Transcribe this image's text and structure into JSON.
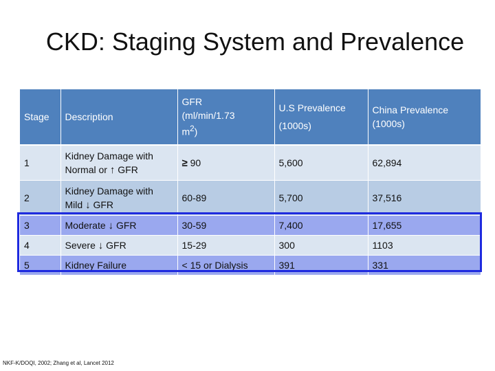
{
  "title": "CKD: Staging System and Prevalence",
  "table": {
    "headers": {
      "stage": "Stage",
      "description": "Description",
      "gfr_line1": "GFR",
      "gfr_line2": "(ml/min/1.73",
      "gfr_line3": "m",
      "gfr_sup": "2",
      "gfr_close": ")",
      "us_line1": "U.S Prevalence",
      "us_line2": "(1000s)",
      "china_line1": "China Prevalence",
      "china_line2": "(1000s)"
    },
    "rows": [
      {
        "stage": "1",
        "desc_line1": "Kidney Damage with",
        "desc_line2": "Normal or",
        "arrow": "↑",
        "desc_tail": "GFR",
        "gfr_symbol": "≥",
        "gfr": "90",
        "us": "5,600",
        "china": "62,894"
      },
      {
        "stage": "2",
        "desc_line1": "Kidney Damage with",
        "desc_line2": "Mild",
        "arrow": "↓",
        "desc_tail": "GFR",
        "gfr": "60-89",
        "us": "5,700",
        "china": "37,516"
      },
      {
        "stage": "3",
        "desc": "Moderate",
        "arrow": "↓",
        "desc_tail": "GFR",
        "gfr": "30-59",
        "us": "7,400",
        "china": "17,655"
      },
      {
        "stage": "4",
        "desc": "Severe",
        "arrow": "↓",
        "desc_tail": "GFR",
        "gfr": "15-29",
        "us": "300",
        "china": "1103"
      },
      {
        "stage": "5",
        "desc": "Kidney Failure",
        "gfr": "< 15 or Dialysis",
        "us": "391",
        "china": "331"
      }
    ]
  },
  "footnote": "NKF-K/DOQI, 2002; Zhang et al, Lancet 2012",
  "colors": {
    "header": "#4f81bd",
    "row_light": "#dbe5f1",
    "row_dark": "#b8cce4",
    "row_highlight": "#9aa8ef",
    "highlight_border": "#1e2adf"
  }
}
